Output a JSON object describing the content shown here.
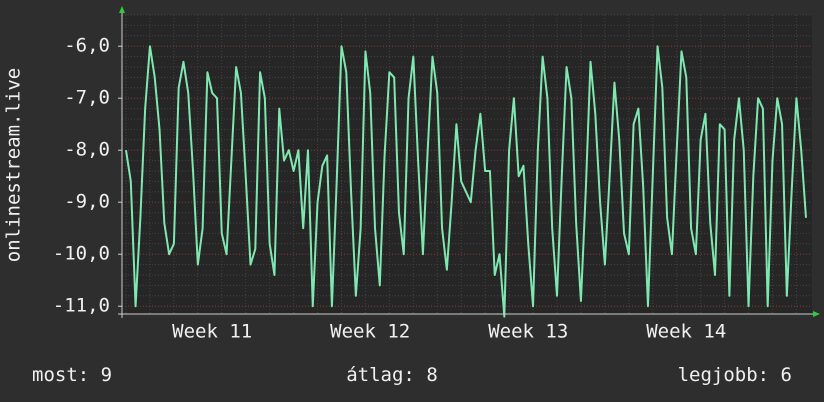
{
  "chart_data": {
    "type": "line",
    "ylabel": "onlinestream.live",
    "categories": [
      null,
      null,
      null,
      null,
      null,
      null,
      null,
      null,
      null,
      null,
      null,
      null,
      null,
      null,
      null,
      null,
      null,
      null,
      "Week 11",
      null,
      null,
      null,
      null,
      null,
      null,
      null,
      null,
      null,
      null,
      null,
      null,
      null,
      null,
      null,
      null,
      null,
      null,
      null,
      null,
      null,
      null,
      null,
      null,
      null,
      null,
      null,
      null,
      null,
      null,
      null,
      null,
      "Week 12",
      null,
      null,
      null,
      null,
      null,
      null,
      null,
      null,
      null,
      null,
      null,
      null,
      null,
      null,
      null,
      null,
      null,
      null,
      null,
      null,
      null,
      null,
      null,
      null,
      null,
      null,
      null,
      null,
      null,
      null,
      null,
      null,
      "Week 13",
      null,
      null,
      null,
      null,
      null,
      null,
      null,
      null,
      null,
      null,
      null,
      null,
      null,
      null,
      null,
      null,
      null,
      null,
      null,
      null,
      null,
      null,
      null,
      null,
      null,
      null,
      null,
      null,
      null,
      null,
      null,
      null,
      "Week 14",
      null,
      null,
      null,
      null,
      null,
      null,
      null,
      null,
      null,
      null,
      null,
      null,
      null,
      null,
      null,
      null,
      null,
      null,
      null,
      null,
      null,
      null,
      null,
      null,
      null
    ],
    "series": [
      {
        "name": "onlinestream.live",
        "color": "#7fe8b0",
        "values": [
          -8.0,
          -8.6,
          -11.0,
          -9.3,
          -7.2,
          -6.0,
          -6.6,
          -7.6,
          -9.4,
          -10.0,
          -9.8,
          -6.8,
          -6.3,
          -6.9,
          -8.4,
          -10.2,
          -9.5,
          -6.5,
          -6.9,
          -7.0,
          -9.6,
          -10.0,
          -8.2,
          -6.4,
          -6.9,
          -8.5,
          -10.2,
          -9.9,
          -6.5,
          -7.0,
          -9.8,
          -10.4,
          -7.2,
          -8.2,
          -8.0,
          -8.4,
          -8.0,
          -9.5,
          -8.0,
          -11.0,
          -9.0,
          -8.3,
          -8.1,
          -11.0,
          -8.6,
          -6.0,
          -6.5,
          -8.8,
          -10.8,
          -9.5,
          -6.1,
          -6.9,
          -9.5,
          -10.6,
          -8.1,
          -6.5,
          -6.6,
          -9.2,
          -10.0,
          -7.0,
          -6.2,
          -8.2,
          -10.0,
          -8.0,
          -6.2,
          -6.9,
          -9.5,
          -10.3,
          -9.0,
          -7.5,
          -8.6,
          -8.8,
          -9.0,
          -8.0,
          -7.3,
          -8.4,
          -8.4,
          -10.4,
          -10.0,
          -11.2,
          -8.0,
          -7.0,
          -8.5,
          -8.3,
          -9.8,
          -11.0,
          -8.0,
          -6.2,
          -7.0,
          -9.5,
          -10.8,
          -8.5,
          -6.4,
          -7.0,
          -9.4,
          -10.9,
          -8.8,
          -6.3,
          -7.3,
          -9.0,
          -10.2,
          -8.5,
          -6.7,
          -7.8,
          -9.6,
          -10.0,
          -7.5,
          -7.2,
          -8.7,
          -11.0,
          -8.5,
          -6.0,
          -6.8,
          -9.3,
          -10.0,
          -8.0,
          -6.1,
          -6.6,
          -9.5,
          -10.0,
          -7.8,
          -7.3,
          -9.4,
          -10.4,
          -7.5,
          -7.6,
          -10.8,
          -7.8,
          -7.0,
          -8.0,
          -11.0,
          -8.5,
          -7.0,
          -7.2,
          -11.0,
          -8.2,
          -7.0,
          -7.5,
          -10.8,
          -8.8,
          -7.0,
          -8.0,
          -9.3
        ]
      }
    ],
    "ylim": [
      -11.15,
      -5.4
    ],
    "yticks": [
      {
        "value": -11,
        "label": "-11,0"
      },
      {
        "value": -10,
        "label": "-10,0"
      },
      {
        "value": -9,
        "label": "-9,0"
      },
      {
        "value": -8,
        "label": "-8,0"
      },
      {
        "value": -7,
        "label": "-7,0"
      },
      {
        "value": -6,
        "label": "-6,0"
      }
    ],
    "grid": true,
    "stats": [
      {
        "label": "most:",
        "value": 9
      },
      {
        "label": "átlag:",
        "value": 8
      },
      {
        "label": "legjobb:",
        "value": 6
      }
    ]
  }
}
